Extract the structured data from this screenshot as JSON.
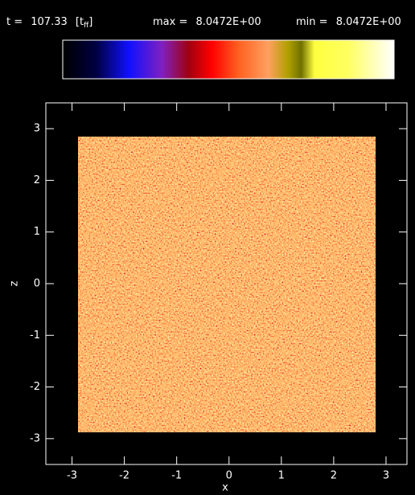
{
  "header": {
    "time_label": "t =",
    "time_value": "107.33",
    "time_unit_open": "[t",
    "time_unit_sub": "ff",
    "time_unit_close": "]",
    "max_label": "max =",
    "max_value": "8.0472E+00",
    "min_label": "min =",
    "min_value": "8.0472E+00"
  },
  "chart_data": {
    "type": "scatter",
    "xlabel": "x",
    "ylabel": "z",
    "xlim": [
      -3.5,
      3.4
    ],
    "ylim": [
      -3.5,
      3.5
    ],
    "xticks": [
      -3,
      -2,
      -1,
      0,
      1,
      2,
      3
    ],
    "yticks": [
      -3,
      -2,
      -1,
      0,
      1,
      2,
      3
    ]
  }
}
